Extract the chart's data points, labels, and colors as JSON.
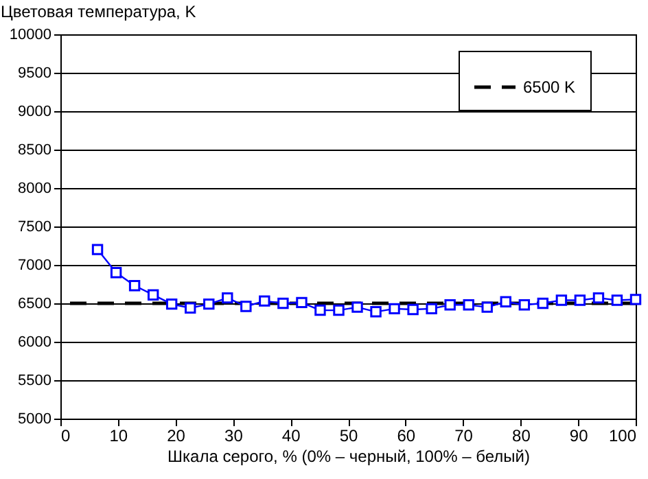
{
  "chart_data": {
    "type": "line",
    "ylabel": "Цветовая температура, K",
    "xlabel": "Шкала серого, % (0% – черный, 100% – белый)",
    "x": [
      6.45,
      9.68,
      12.9,
      16.13,
      19.35,
      22.58,
      25.81,
      29.03,
      32.26,
      35.48,
      38.71,
      41.94,
      45.16,
      48.39,
      51.61,
      54.84,
      58.06,
      61.29,
      64.52,
      67.74,
      70.97,
      74.19,
      77.42,
      80.65,
      83.87,
      87.1,
      90.32,
      93.55,
      96.77,
      100
    ],
    "series": [
      {
        "color": "#0000ff",
        "values": [
          7200,
          6900,
          6730,
          6610,
          6490,
          6440,
          6490,
          6570,
          6460,
          6530,
          6500,
          6510,
          6410,
          6410,
          6450,
          6390,
          6430,
          6420,
          6430,
          6480,
          6480,
          6450,
          6520,
          6480,
          6500,
          6540,
          6540,
          6570,
          6540,
          6550
        ]
      }
    ],
    "xlim": [
      0,
      100
    ],
    "xticks": [
      0,
      10,
      20,
      30,
      40,
      50,
      60,
      70,
      80,
      90,
      100
    ],
    "ylim": [
      5000,
      10000
    ],
    "yticks": [
      5000,
      5500,
      6000,
      6500,
      7000,
      7500,
      8000,
      8500,
      9000,
      9500,
      10000
    ],
    "ref_lines": [
      {
        "axis": "y",
        "value": 6500,
        "label": "6500 K",
        "color": "#000000",
        "line_style": "dashed"
      }
    ],
    "grid": "y",
    "legend": "top right",
    "marker": "square",
    "line_style": "solid"
  }
}
